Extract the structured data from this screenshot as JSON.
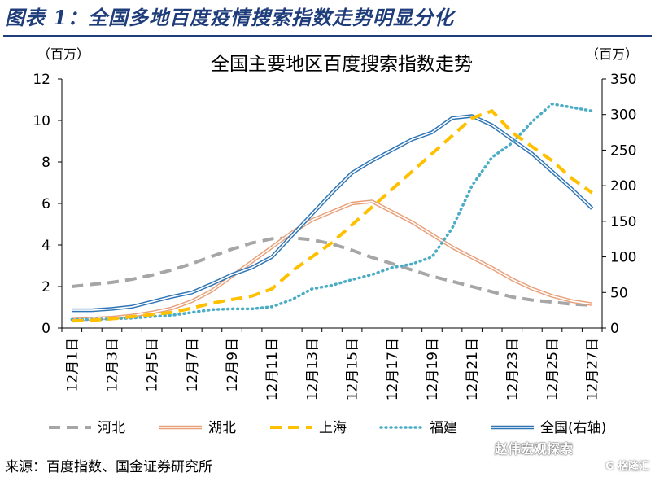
{
  "figure_title": "图表 1：全国多地百度疫情搜索指数走势明显分化",
  "source": "来源：百度指数、国金证券研究所",
  "watermark": "赵伟宏观探索",
  "watermark_sub": "G 格隆汇",
  "chart_data": {
    "type": "line",
    "title": "全国主要地区百度搜索指数走势",
    "left_unit": "（百万）",
    "right_unit": "（百万）",
    "ylim_left": [
      0,
      12
    ],
    "ylim_right": [
      0,
      350
    ],
    "yticks_left": [
      "0",
      "2",
      "4",
      "6",
      "8",
      "10",
      "12"
    ],
    "yticks_right": [
      "0",
      "50",
      "100",
      "150",
      "200",
      "250",
      "300",
      "350"
    ],
    "x_tick_labels": [
      "12月1日",
      "12月3日",
      "12月5日",
      "12月7日",
      "12月9日",
      "12月11日",
      "12月13日",
      "12月15日",
      "12月17日",
      "12月19日",
      "12月21日",
      "12月23日",
      "12月25日",
      "12月27日"
    ],
    "x": [
      "12月1日",
      "12月2日",
      "12月3日",
      "12月4日",
      "12月5日",
      "12月6日",
      "12月7日",
      "12月8日",
      "12月9日",
      "12月10日",
      "12月11日",
      "12月12日",
      "12月13日",
      "12月14日",
      "12月15日",
      "12月16日",
      "12月17日",
      "12月18日",
      "12月19日",
      "12月20日",
      "12月21日",
      "12月22日",
      "12月23日",
      "12月24日",
      "12月25日",
      "12月26日",
      "12月27日"
    ],
    "series": [
      {
        "name": "河北",
        "axis": "left",
        "color": "#A6A6A6",
        "style": "dash",
        "values": [
          2.0,
          2.1,
          2.2,
          2.35,
          2.55,
          2.8,
          3.1,
          3.45,
          3.8,
          4.1,
          4.3,
          4.35,
          4.25,
          4.05,
          3.75,
          3.4,
          3.1,
          2.8,
          2.5,
          2.25,
          2.0,
          1.75,
          1.5,
          1.35,
          1.25,
          1.15,
          1.1
        ]
      },
      {
        "name": "湖北",
        "axis": "left",
        "color": "#E8A07A",
        "style": "double",
        "values": [
          0.4,
          0.45,
          0.5,
          0.6,
          0.75,
          0.95,
          1.3,
          1.8,
          2.5,
          3.2,
          3.9,
          4.6,
          5.2,
          5.6,
          6.0,
          6.1,
          5.6,
          5.1,
          4.5,
          3.9,
          3.4,
          2.9,
          2.35,
          1.9,
          1.55,
          1.3,
          1.15
        ]
      },
      {
        "name": "上海",
        "axis": "right",
        "color": "#FFC000",
        "style": "dash",
        "values": [
          10,
          11,
          13,
          16,
          19,
          22,
          28,
          35,
          40,
          45,
          55,
          80,
          100,
          120,
          145,
          170,
          195,
          220,
          245,
          270,
          295,
          305,
          275,
          255,
          235,
          210,
          190
        ]
      },
      {
        "name": "福建",
        "axis": "right",
        "color": "#4BACC6",
        "style": "dot",
        "values": [
          12,
          12,
          13,
          14,
          16,
          18,
          22,
          26,
          27,
          27,
          30,
          40,
          55,
          60,
          68,
          75,
          85,
          90,
          100,
          140,
          200,
          240,
          260,
          290,
          315,
          310,
          305
        ]
      },
      {
        "name": "全国(右轴)",
        "axis": "right",
        "color": "#2E75B6",
        "style": "double",
        "values": [
          25,
          25,
          27,
          30,
          37,
          44,
          50,
          62,
          75,
          85,
          100,
          130,
          160,
          190,
          218,
          235,
          250,
          265,
          275,
          295,
          298,
          285,
          265,
          245,
          220,
          195,
          168
        ]
      }
    ],
    "legend_position": "bottom",
    "grid": false
  }
}
